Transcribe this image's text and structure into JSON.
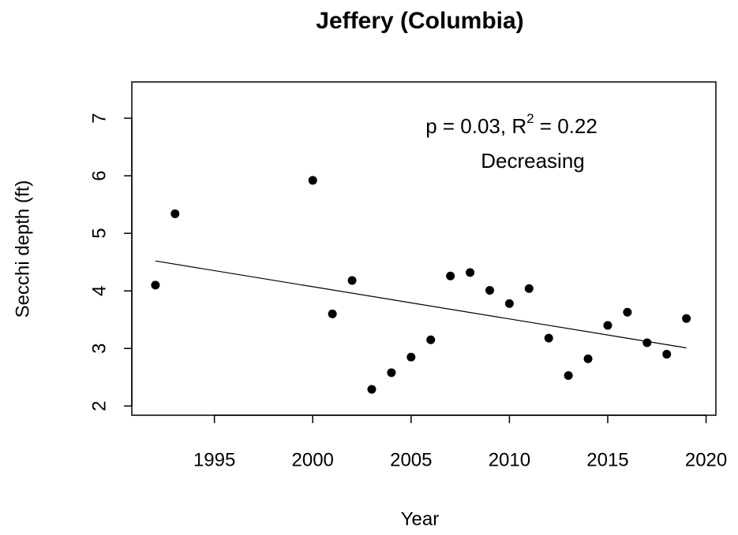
{
  "chart_data": {
    "type": "scatter",
    "title": "Jeffery (Columbia)",
    "x_label": "Year",
    "y_label": "Secchi depth (ft)",
    "x": [
      1992,
      1993,
      2000,
      2001,
      2002,
      2003,
      2004,
      2005,
      2006,
      2007,
      2008,
      2009,
      2010,
      2011,
      2012,
      2013,
      2014,
      2015,
      2016,
      2017,
      2018,
      2019
    ],
    "values": [
      4.1,
      5.34,
      5.92,
      3.6,
      4.18,
      2.29,
      2.58,
      2.85,
      3.15,
      4.26,
      4.32,
      4.01,
      3.78,
      4.04,
      3.18,
      2.53,
      2.82,
      3.4,
      3.63,
      3.1,
      2.9,
      3.52
    ],
    "color": "#000000",
    "trend": {
      "x": [
        1992,
        2019
      ],
      "values": [
        4.52,
        3.01
      ],
      "color": "#000000"
    },
    "annotation": {
      "parts": [
        "p = 0.03, R",
        "2",
        " = 0.22"
      ],
      "trend_label": "Decreasing"
    },
    "xlim": [
      1990.8,
      2020.5
    ],
    "ylim": [
      1.84,
      7.63
    ],
    "xticks": [
      1995,
      2000,
      2005,
      2010,
      2015,
      2020
    ],
    "yticks": [
      2,
      3,
      4,
      5,
      6,
      7
    ]
  }
}
